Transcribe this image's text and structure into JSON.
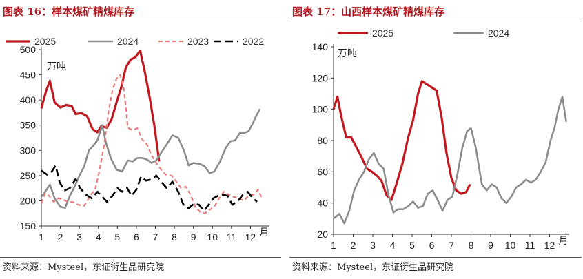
{
  "charts": [
    {
      "title": "图表 16：样本煤矿精煤库存",
      "source": "资料来源：Mysteel，东证衍生品研究院",
      "unit_label": "万吨"
    },
    {
      "title": "图表 17：山西样本煤矿精煤库存",
      "source": "资料来源：Mysteel，东证衍生品研究院",
      "unit_label": "万吨"
    }
  ],
  "colors": {
    "c2025": "#c0181e",
    "c2024": "#8c8c8c",
    "c2023": "#e87b7b",
    "c2022": "#000000",
    "title": "#b21e24"
  },
  "chart_data": [
    {
      "type": "line",
      "title": "",
      "ylim": [
        150,
        500
      ],
      "yticks": [
        "150",
        "200",
        "250",
        "300",
        "350",
        "400",
        "450",
        "500"
      ],
      "xlim": [
        1,
        13
      ],
      "xticks": [
        "1",
        "2",
        "3",
        "4",
        "5",
        "6",
        "7",
        "8",
        "9",
        "10",
        "11",
        "12",
        "月"
      ],
      "legend_position": "top",
      "grid": false,
      "series": [
        {
          "name": "2025",
          "style": "solid-bold",
          "color": "#c0181e",
          "points": [
            [
              1.0,
              383
            ],
            [
              1.25,
              418
            ],
            [
              1.45,
              438
            ],
            [
              1.7,
              395
            ],
            [
              2.0,
              385
            ],
            [
              2.3,
              390
            ],
            [
              2.6,
              388
            ],
            [
              2.8,
              372
            ],
            [
              3.1,
              374
            ],
            [
              3.4,
              368
            ],
            [
              3.7,
              342
            ],
            [
              3.95,
              336
            ],
            [
              4.15,
              348
            ],
            [
              4.45,
              345
            ],
            [
              4.7,
              362
            ],
            [
              4.95,
              395
            ],
            [
              5.2,
              425
            ],
            [
              5.45,
              465
            ],
            [
              5.7,
              480
            ],
            [
              5.95,
              485
            ],
            [
              6.2,
              498
            ],
            [
              6.45,
              455
            ],
            [
              6.7,
              405
            ],
            [
              6.95,
              348
            ],
            [
              7.2,
              278
            ]
          ]
        },
        {
          "name": "2024",
          "style": "solid",
          "color": "#8c8c8c",
          "points": [
            [
              1.0,
              208
            ],
            [
              1.2,
              218
            ],
            [
              1.45,
              232
            ],
            [
              1.7,
              205
            ],
            [
              2.0,
              188
            ],
            [
              2.25,
              186
            ],
            [
              2.5,
              210
            ],
            [
              2.75,
              228
            ],
            [
              3.0,
              250
            ],
            [
              3.25,
              268
            ],
            [
              3.5,
              300
            ],
            [
              3.7,
              308
            ],
            [
              3.95,
              320
            ],
            [
              4.2,
              350
            ],
            [
              4.4,
              315
            ],
            [
              4.65,
              285
            ],
            [
              4.95,
              262
            ],
            [
              5.25,
              258
            ],
            [
              5.55,
              280
            ],
            [
              5.8,
              278
            ],
            [
              6.05,
              285
            ],
            [
              6.3,
              285
            ],
            [
              6.55,
              282
            ],
            [
              6.8,
              275
            ],
            [
              7.05,
              280
            ],
            [
              7.3,
              295
            ],
            [
              7.6,
              312
            ],
            [
              7.9,
              330
            ],
            [
              8.2,
              325
            ],
            [
              8.5,
              300
            ],
            [
              8.75,
              270
            ],
            [
              9.0,
              275
            ],
            [
              9.35,
              273
            ],
            [
              9.6,
              268
            ],
            [
              9.85,
              255
            ],
            [
              10.1,
              258
            ],
            [
              10.4,
              278
            ],
            [
              10.7,
              305
            ],
            [
              10.95,
              318
            ],
            [
              11.2,
              320
            ],
            [
              11.45,
              335
            ],
            [
              11.7,
              335
            ],
            [
              11.9,
              338
            ],
            [
              12.1,
              352
            ],
            [
              12.3,
              368
            ],
            [
              12.5,
              382
            ]
          ]
        },
        {
          "name": "2023",
          "style": "dashed",
          "color": "#e87b7b",
          "points": [
            [
              1.0,
              195
            ],
            [
              1.2,
              215
            ],
            [
              1.4,
              210
            ],
            [
              1.65,
              198
            ],
            [
              1.9,
              205
            ],
            [
              2.15,
              202
            ],
            [
              2.4,
              198
            ],
            [
              2.7,
              197
            ],
            [
              2.95,
              192
            ],
            [
              3.25,
              190
            ],
            [
              3.55,
              208
            ],
            [
              3.85,
              225
            ],
            [
              4.05,
              258
            ],
            [
              4.3,
              310
            ],
            [
              4.55,
              380
            ],
            [
              4.75,
              420
            ],
            [
              4.95,
              442
            ],
            [
              5.15,
              450
            ],
            [
              5.35,
              420
            ],
            [
              5.55,
              345
            ],
            [
              5.8,
              340
            ],
            [
              6.05,
              344
            ],
            [
              6.3,
              322
            ],
            [
              6.55,
              312
            ],
            [
              6.8,
              290
            ],
            [
              7.05,
              275
            ],
            [
              7.3,
              262
            ],
            [
              7.55,
              252
            ],
            [
              7.85,
              250
            ],
            [
              8.1,
              238
            ],
            [
              8.35,
              225
            ],
            [
              8.6,
              228
            ],
            [
              8.85,
              212
            ],
            [
              9.1,
              188
            ],
            [
              9.35,
              178
            ],
            [
              9.6,
              175
            ],
            [
              9.85,
              182
            ],
            [
              10.1,
              188
            ],
            [
              10.35,
              205
            ],
            [
              10.6,
              218
            ],
            [
              10.85,
              212
            ],
            [
              11.1,
              208
            ],
            [
              11.4,
              205
            ],
            [
              11.65,
              200
            ],
            [
              11.9,
              210
            ],
            [
              12.15,
              212
            ],
            [
              12.4,
              222
            ],
            [
              12.6,
              205
            ]
          ]
        },
        {
          "name": "2022",
          "style": "dash-heavy",
          "color": "#000000",
          "points": [
            [
              1.0,
              260
            ],
            [
              1.3,
              252
            ],
            [
              1.55,
              258
            ],
            [
              1.75,
              270
            ],
            [
              1.95,
              238
            ],
            [
              2.2,
              220
            ],
            [
              2.5,
              225
            ],
            [
              2.8,
              243
            ],
            [
              3.05,
              225
            ],
            [
              3.35,
              212
            ],
            [
              3.65,
              205
            ],
            [
              3.95,
              218
            ],
            [
              4.2,
              208
            ],
            [
              4.45,
              198
            ],
            [
              4.75,
              210
            ],
            [
              5.0,
              225
            ],
            [
              5.25,
              218
            ],
            [
              5.5,
              226
            ],
            [
              5.75,
              210
            ],
            [
              6.0,
              222
            ],
            [
              6.25,
              248
            ],
            [
              6.5,
              240
            ],
            [
              6.75,
              242
            ],
            [
              7.05,
              250
            ],
            [
              7.3,
              238
            ],
            [
              7.6,
              225
            ],
            [
              7.9,
              238
            ],
            [
              8.2,
              218
            ],
            [
              8.5,
              190
            ],
            [
              8.75,
              185
            ],
            [
              9.05,
              195
            ],
            [
              9.3,
              192
            ],
            [
              9.55,
              180
            ],
            [
              9.8,
              192
            ],
            [
              10.05,
              205
            ],
            [
              10.3,
              210
            ],
            [
              10.55,
              212
            ],
            [
              10.8,
              210
            ],
            [
              11.05,
              192
            ],
            [
              11.35,
              200
            ],
            [
              11.6,
              212
            ],
            [
              11.85,
              218
            ],
            [
              12.1,
              206
            ],
            [
              12.35,
              198
            ]
          ]
        }
      ]
    },
    {
      "type": "line",
      "title": "",
      "ylim": [
        20,
        140
      ],
      "yticks": [
        "20",
        "40",
        "60",
        "80",
        "100",
        "120",
        "140"
      ],
      "xlim": [
        1,
        13
      ],
      "xticks": [
        "1",
        "2",
        "3",
        "4",
        "5",
        "6",
        "7",
        "8",
        "9",
        "10",
        "11",
        "12",
        "月"
      ],
      "legend_position": "top",
      "grid": false,
      "series": [
        {
          "name": "2025",
          "style": "solid-bold",
          "color": "#c0181e",
          "points": [
            [
              1.0,
              100
            ],
            [
              1.2,
              108
            ],
            [
              1.4,
              95
            ],
            [
              1.65,
              82
            ],
            [
              1.9,
              82
            ],
            [
              2.15,
              76
            ],
            [
              2.4,
              70
            ],
            [
              2.7,
              62
            ],
            [
              2.95,
              60
            ],
            [
              3.25,
              57
            ],
            [
              3.45,
              54
            ],
            [
              3.7,
              45
            ],
            [
              3.95,
              42
            ],
            [
              4.2,
              52
            ],
            [
              4.5,
              65
            ],
            [
              4.8,
              82
            ],
            [
              5.05,
              93
            ],
            [
              5.3,
              110
            ],
            [
              5.5,
              118
            ],
            [
              5.75,
              116
            ],
            [
              6.0,
              114
            ],
            [
              6.25,
              112
            ],
            [
              6.5,
              95
            ],
            [
              6.75,
              72
            ],
            [
              7.0,
              56
            ],
            [
              7.25,
              48
            ],
            [
              7.5,
              46
            ],
            [
              7.75,
              47
            ],
            [
              7.95,
              52
            ]
          ]
        },
        {
          "name": "2024",
          "style": "solid",
          "color": "#8c8c8c",
          "points": [
            [
              1.0,
              30
            ],
            [
              1.3,
              33
            ],
            [
              1.55,
              27
            ],
            [
              1.8,
              35
            ],
            [
              2.05,
              48
            ],
            [
              2.3,
              55
            ],
            [
              2.55,
              60
            ],
            [
              2.8,
              68
            ],
            [
              3.05,
              72
            ],
            [
              3.3,
              65
            ],
            [
              3.55,
              62
            ],
            [
              3.8,
              45
            ],
            [
              4.05,
              34
            ],
            [
              4.3,
              36
            ],
            [
              4.55,
              36
            ],
            [
              4.8,
              38
            ],
            [
              5.05,
              41
            ],
            [
              5.3,
              37
            ],
            [
              5.55,
              38
            ],
            [
              5.8,
              46
            ],
            [
              6.05,
              48
            ],
            [
              6.3,
              42
            ],
            [
              6.55,
              35
            ],
            [
              6.8,
              42
            ],
            [
              7.05,
              44
            ],
            [
              7.3,
              58
            ],
            [
              7.55,
              75
            ],
            [
              7.8,
              86
            ],
            [
              8.0,
              88
            ],
            [
              8.25,
              75
            ],
            [
              8.55,
              52
            ],
            [
              8.8,
              48
            ],
            [
              9.05,
              52
            ],
            [
              9.3,
              50
            ],
            [
              9.55,
              43
            ],
            [
              9.8,
              40
            ],
            [
              10.05,
              44
            ],
            [
              10.3,
              50
            ],
            [
              10.55,
              52
            ],
            [
              10.8,
              55
            ],
            [
              11.05,
              53
            ],
            [
              11.3,
              55
            ],
            [
              11.55,
              60
            ],
            [
              11.8,
              66
            ],
            [
              12.05,
              80
            ],
            [
              12.25,
              88
            ],
            [
              12.45,
              100
            ],
            [
              12.65,
              108
            ],
            [
              12.85,
              92
            ]
          ]
        }
      ]
    }
  ]
}
